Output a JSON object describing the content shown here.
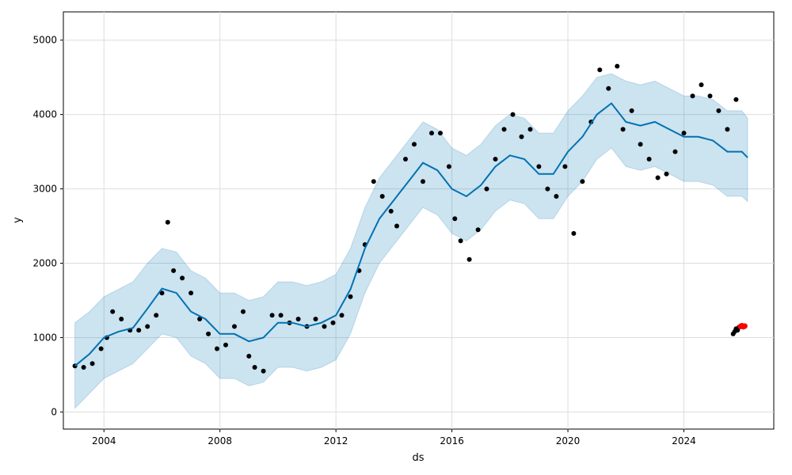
{
  "chart_data": {
    "type": "line",
    "xlabel": "ds",
    "ylabel": "y",
    "xlim": [
      2002.6,
      2027.1
    ],
    "ylim": [
      -230,
      5380
    ],
    "grid": true,
    "x_tick_labels": [
      "2004",
      "2008",
      "2012",
      "2016",
      "2020",
      "2024"
    ],
    "x_ticks": [
      2004,
      2008,
      2012,
      2016,
      2020,
      2024
    ],
    "y_tick_labels": [
      "0",
      "1000",
      "2000",
      "3000",
      "4000",
      "5000"
    ],
    "y_ticks": [
      0,
      1000,
      2000,
      3000,
      4000,
      5000
    ],
    "colors": {
      "forecast_line": "#0072B2",
      "uncertainty_band": "#0072B2",
      "observed_points": "#000000",
      "highlight_points": "#ff0000",
      "grid": "#dddddd"
    },
    "series": [
      {
        "kind": "forecast",
        "x": [
          2003.0,
          2003.5,
          2004.0,
          2004.5,
          2005.0,
          2005.5,
          2006.0,
          2006.5,
          2007.0,
          2007.5,
          2008.0,
          2008.5,
          2009.0,
          2009.5,
          2010.0,
          2010.5,
          2011.0,
          2011.5,
          2012.0,
          2012.5,
          2013.0,
          2013.5,
          2014.0,
          2014.5,
          2015.0,
          2015.5,
          2016.0,
          2016.5,
          2017.0,
          2017.5,
          2018.0,
          2018.5,
          2019.0,
          2019.5,
          2020.0,
          2020.5,
          2021.0,
          2021.5,
          2022.0,
          2022.5,
          2023.0,
          2023.5,
          2024.0,
          2024.5,
          2025.0,
          2025.5,
          2026.0,
          2026.2
        ],
        "y": [
          620,
          780,
          1000,
          1080,
          1130,
          1390,
          1660,
          1600,
          1350,
          1250,
          1050,
          1050,
          950,
          1000,
          1200,
          1200,
          1150,
          1200,
          1300,
          1650,
          2200,
          2600,
          2850,
          3100,
          3350,
          3250,
          3000,
          2900,
          3050,
          3300,
          3450,
          3400,
          3200,
          3200,
          3500,
          3700,
          4000,
          4150,
          3900,
          3850,
          3900,
          3800,
          3700,
          3700,
          3650,
          3500,
          3500,
          3420
        ],
        "lower": [
          50,
          250,
          450,
          550,
          650,
          850,
          1050,
          1000,
          750,
          650,
          450,
          450,
          350,
          400,
          600,
          600,
          550,
          600,
          700,
          1050,
          1600,
          2000,
          2250,
          2500,
          2750,
          2650,
          2400,
          2300,
          2450,
          2700,
          2850,
          2800,
          2600,
          2600,
          2900,
          3100,
          3400,
          3550,
          3300,
          3250,
          3300,
          3200,
          3100,
          3100,
          3050,
          2900,
          2900,
          2830
        ],
        "upper": [
          1200,
          1350,
          1550,
          1650,
          1750,
          2000,
          2200,
          2150,
          1900,
          1800,
          1600,
          1600,
          1500,
          1550,
          1750,
          1750,
          1700,
          1750,
          1850,
          2200,
          2750,
          3150,
          3400,
          3650,
          3900,
          3800,
          3550,
          3450,
          3600,
          3850,
          4000,
          3950,
          3750,
          3750,
          4050,
          4250,
          4500,
          4550,
          4450,
          4400,
          4450,
          4350,
          4250,
          4250,
          4200,
          4050,
          4050,
          3950
        ]
      },
      {
        "kind": "observed",
        "x": [
          2003.0,
          2003.3,
          2003.6,
          2003.9,
          2004.1,
          2004.3,
          2004.6,
          2004.9,
          2005.2,
          2005.5,
          2005.8,
          2006.0,
          2006.2,
          2006.4,
          2006.7,
          2007.0,
          2007.3,
          2007.6,
          2007.9,
          2008.2,
          2008.5,
          2008.8,
          2009.0,
          2009.2,
          2009.5,
          2009.8,
          2010.1,
          2010.4,
          2010.7,
          2011.0,
          2011.3,
          2011.6,
          2011.9,
          2012.2,
          2012.5,
          2012.8,
          2013.0,
          2013.3,
          2013.6,
          2013.9,
          2014.1,
          2014.4,
          2014.7,
          2015.0,
          2015.3,
          2015.6,
          2015.9,
          2016.1,
          2016.3,
          2016.6,
          2016.9,
          2017.2,
          2017.5,
          2017.8,
          2018.1,
          2018.4,
          2018.7,
          2019.0,
          2019.3,
          2019.6,
          2019.9,
          2020.2,
          2020.5,
          2020.8,
          2021.1,
          2021.4,
          2021.7,
          2021.9,
          2022.2,
          2022.5,
          2022.8,
          2023.1,
          2023.4,
          2023.7,
          2024.0,
          2024.3,
          2024.6,
          2024.9,
          2025.2,
          2025.5,
          2025.8
        ],
        "y": [
          620,
          600,
          650,
          850,
          1000,
          1350,
          1250,
          1100,
          1100,
          1150,
          1300,
          1600,
          2550,
          1900,
          1800,
          1600,
          1250,
          1050,
          850,
          900,
          1150,
          1350,
          750,
          600,
          550,
          1300,
          1300,
          1200,
          1250,
          1150,
          1250,
          1150,
          1200,
          1300,
          1550,
          1900,
          2250,
          3100,
          2900,
          2700,
          2500,
          3400,
          3600,
          3100,
          3750,
          3750,
          3300,
          2600,
          2300,
          2050,
          2450,
          3000,
          3400,
          3800,
          4000,
          3700,
          3800,
          3300,
          3000,
          2900,
          3300,
          2400,
          3100,
          3900,
          4600,
          4350,
          4650,
          3800,
          4050,
          3600,
          3400,
          3150,
          3200,
          3500,
          3750,
          4250,
          4400,
          4250,
          4050,
          3800,
          4200
        ]
      },
      {
        "kind": "observed_recent",
        "x": [
          2025.7,
          2025.75,
          2025.8,
          2025.85,
          2025.9
        ],
        "y": [
          1050,
          1080,
          1120,
          1100,
          1140
        ]
      },
      {
        "kind": "highlight",
        "x": [
          2025.95,
          2026.0,
          2026.05,
          2026.1
        ],
        "y": [
          1150,
          1160,
          1145,
          1155
        ]
      }
    ]
  }
}
